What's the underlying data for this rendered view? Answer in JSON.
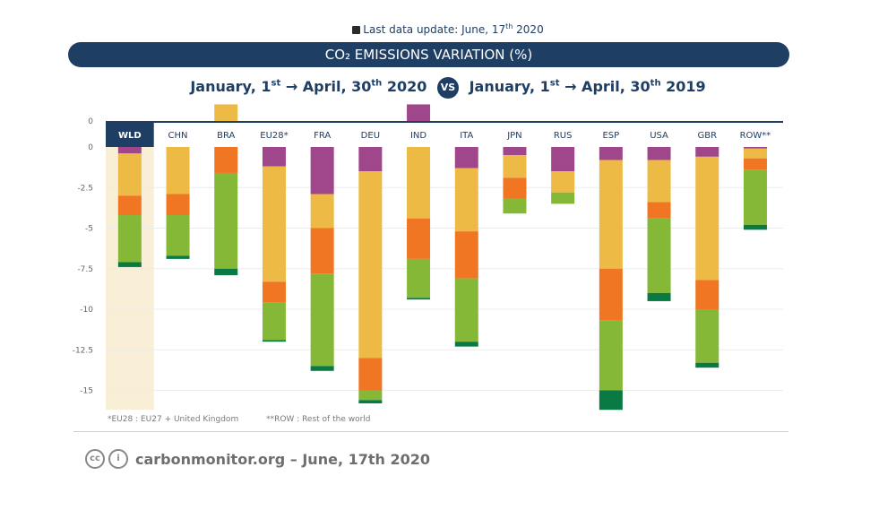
{
  "header": {
    "update_prefix": "Last data update: June, 17",
    "update_sup": "th",
    "update_suffix": " 2020",
    "banner": "CO₂ EMISSIONS VARIATION (%)",
    "period": {
      "a1": "January, 1",
      "a1sup": "st",
      "a2": "→ April, 30",
      "a2sup": "th",
      "a3": " 2020",
      "vs": "VS",
      "b1": "January, 1",
      "b1sup": "st",
      "b2": "→ April, 30",
      "b2sup": "th",
      "b3": " 2019"
    }
  },
  "chart_data": {
    "type": "bar",
    "stacked": true,
    "categories": [
      "WLD",
      "CHN",
      "BRA",
      "EU28*",
      "FRA",
      "DEU",
      "IND",
      "ITA",
      "JPN",
      "RUS",
      "ESP",
      "USA",
      "GBR",
      "ROW**"
    ],
    "highlight_category": "WLD",
    "yticks": [
      0,
      -2.5,
      -5,
      -7.5,
      -10,
      -12.5,
      -15
    ],
    "upper_axis_tick": 0,
    "ylim": [
      -16.5,
      0
    ],
    "series_colors": [
      "#a0468a",
      "#ecba45",
      "#f07624",
      "#86b837",
      "#0a7a45"
    ],
    "series": [
      {
        "values": [
          -0.4,
          0,
          0,
          -1.2,
          -2.9,
          -1.5,
          0,
          -1.3,
          -0.5,
          -1.5,
          -0.8,
          -0.8,
          -0.6,
          -0.1
        ]
      },
      {
        "values": [
          -2.6,
          -2.9,
          0,
          -7.1,
          -2.1,
          -11.5,
          -4.4,
          -3.9,
          -1.4,
          -1.3,
          -6.7,
          -2.6,
          -7.6,
          -0.6
        ]
      },
      {
        "values": [
          -1.2,
          -1.3,
          -1.6,
          -1.3,
          -2.8,
          -2.0,
          -2.5,
          -2.9,
          -1.3,
          0,
          -3.2,
          -1.0,
          -1.8,
          -0.7
        ]
      },
      {
        "values": [
          -2.9,
          -2.5,
          -5.9,
          -2.3,
          -5.7,
          -0.6,
          -2.4,
          -3.9,
          -0.9,
          -0.7,
          -4.3,
          -4.6,
          -3.3,
          -3.4
        ]
      },
      {
        "values": [
          -0.3,
          -0.2,
          -0.4,
          -0.1,
          -0.3,
          -0.2,
          -0.1,
          -0.3,
          0,
          0,
          -1.2,
          -0.5,
          -0.3,
          -0.3
        ]
      }
    ],
    "positive": {
      "BRA": {
        "value": 0.8,
        "color": "#ecba45"
      },
      "IND": {
        "value": 0.8,
        "color": "#a0468a"
      }
    },
    "grid": true
  },
  "notes": {
    "eu": "*EU28 : EU27 + United Kingdom",
    "row": "**ROW : Rest of the world"
  },
  "footer": {
    "cc": "cc",
    "by": "i",
    "text": "carbonmonitor.org – June, 17th 2020"
  }
}
